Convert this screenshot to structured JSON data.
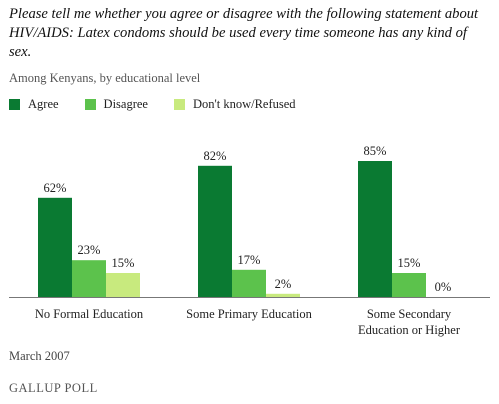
{
  "title": "Please tell me whether you agree or disagree with the following statement about HIV/AIDS: Latex condoms should be used every time someone has any kind of sex.",
  "subtitle": "Among Kenyans, by educational level",
  "footer_date": "March 2007",
  "logo_text": "GALLUP POLL",
  "colors": {
    "agree": "#0a7a32",
    "disagree": "#5cc24c",
    "dontknow": "#c8ea7e",
    "baseline": "#777777"
  },
  "chart_data": {
    "type": "bar",
    "categories": [
      [
        "No Formal Education"
      ],
      [
        "Some Primary Education"
      ],
      [
        "Some Secondary",
        "Education or Higher"
      ]
    ],
    "series": [
      {
        "name": "Agree",
        "values": [
          62,
          82,
          85
        ]
      },
      {
        "name": "Disagree",
        "values": [
          23,
          17,
          15
        ]
      },
      {
        "name": "Don't know/Refused",
        "values": [
          15,
          2,
          0
        ]
      }
    ],
    "value_suffix": "%",
    "ylim": [
      0,
      100
    ],
    "legend_position": "top-left",
    "grid": false
  }
}
